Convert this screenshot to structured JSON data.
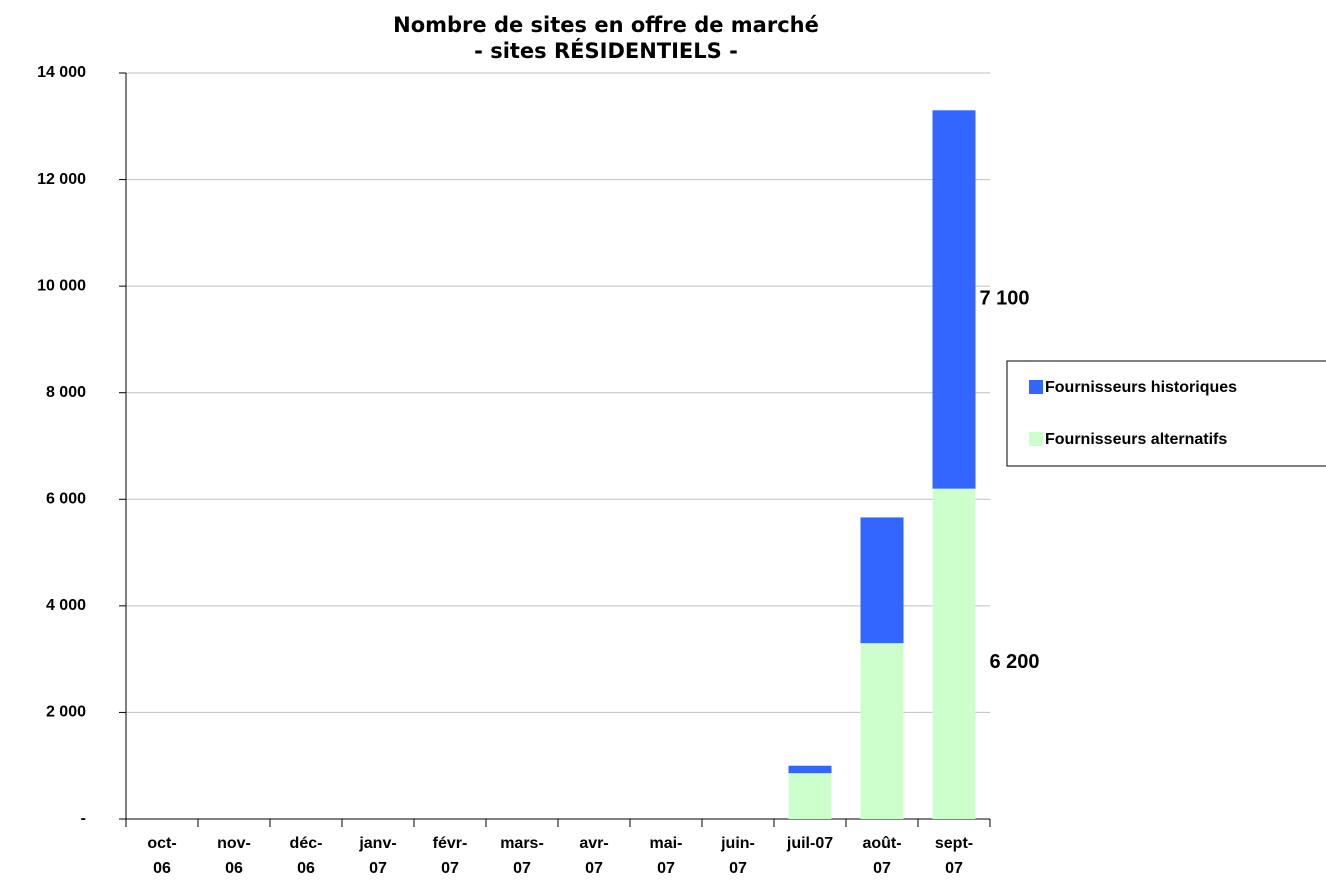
{
  "chart_data": {
    "type": "bar",
    "stacked": true,
    "title": "Nombre de sites en offre de marché\n- sites RÉSIDENTIELS -",
    "categories": [
      "oct-\n06",
      "nov-\n06",
      "déc-\n06",
      "janv-\n07",
      "févr-\n07",
      "mars-\n07",
      "avr-\n07",
      "mai-\n07",
      "juin-\n07",
      "juil-07",
      "août-\n07",
      "sept-\n07"
    ],
    "series": [
      {
        "name": "Fournisseurs alternatifs",
        "color": "#ccffcc",
        "values": [
          0,
          0,
          0,
          0,
          0,
          0,
          0,
          0,
          0,
          860,
          3300,
          6200
        ],
        "value_labels": [
          null,
          null,
          null,
          null,
          null,
          null,
          null,
          null,
          null,
          null,
          null,
          "6 200"
        ]
      },
      {
        "name": "Fournisseurs historiques",
        "color": "#3366ff",
        "values": [
          0,
          0,
          0,
          0,
          0,
          0,
          0,
          0,
          0,
          140,
          2360,
          7100
        ],
        "value_labels": [
          null,
          null,
          null,
          null,
          null,
          null,
          null,
          null,
          null,
          null,
          null,
          "7 100"
        ]
      }
    ],
    "ylim": [
      0,
      14000
    ],
    "yticks": [
      {
        "value": 0,
        "label": "-"
      },
      {
        "value": 2000,
        "label": "2 000"
      },
      {
        "value": 4000,
        "label": "4 000"
      },
      {
        "value": 6000,
        "label": "6 000"
      },
      {
        "value": 8000,
        "label": "8 000"
      },
      {
        "value": 10000,
        "label": "10 000"
      },
      {
        "value": 12000,
        "label": "12 000"
      },
      {
        "value": 14000,
        "label": "14 000"
      }
    ],
    "grid": true,
    "legend": "right"
  }
}
